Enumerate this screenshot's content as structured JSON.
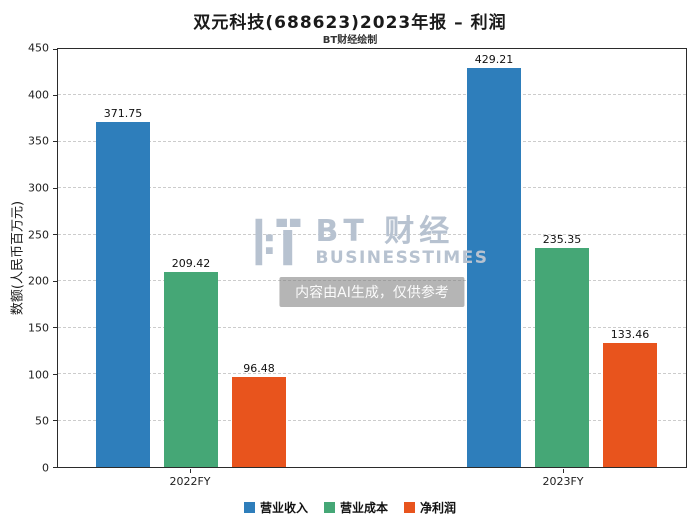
{
  "title": "双元科技(688623)2023年报 – 利润",
  "subtitle": "BT财经绘制",
  "watermark": {
    "brand": "BT 财经",
    "brand_sub": "BUSINESSTIMES",
    "disclaimer": "内容由AI生成，仅供参考",
    "color": "#b7c2d0"
  },
  "chart_data": {
    "type": "bar",
    "categories": [
      "2022FY",
      "2023FY"
    ],
    "series": [
      {
        "name": "营业收入",
        "color": "#2E7EBB",
        "values": [
          371.75,
          429.21
        ]
      },
      {
        "name": "营业成本",
        "color": "#45A776",
        "values": [
          209.42,
          235.35
        ]
      },
      {
        "name": "净利润",
        "color": "#E8541D",
        "values": [
          96.48,
          133.46
        ]
      }
    ],
    "title": "双元科技(688623)2023年报 – 利润",
    "xlabel": "",
    "ylabel": "数额(人民币百万元)",
    "ylim": [
      0,
      450
    ],
    "ytick_step": 50,
    "grid": "horizontal-dashed",
    "legend_position": "bottom"
  }
}
